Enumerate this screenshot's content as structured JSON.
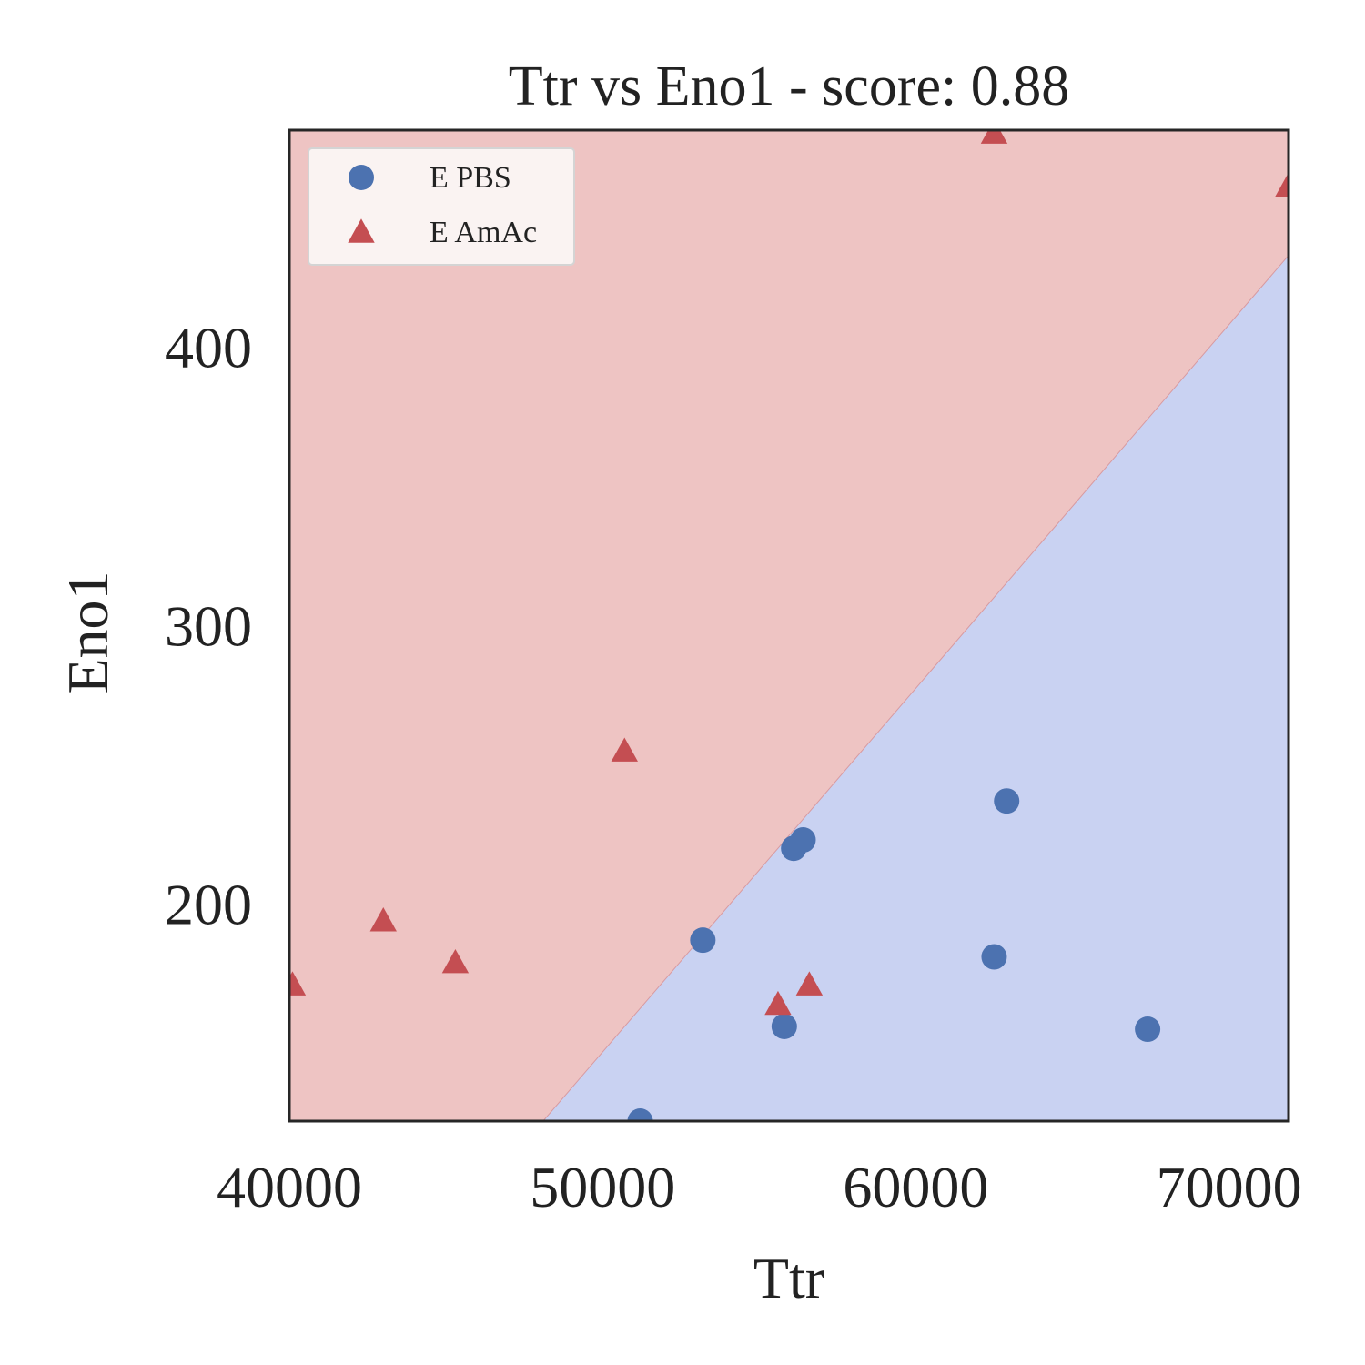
{
  "chart_data": {
    "type": "scatter",
    "title": "Ttr vs Eno1 - score: 0.88",
    "xlabel": "Ttr",
    "ylabel": "Eno1",
    "xlim": [
      40000,
      71900
    ],
    "ylim": [
      122,
      478
    ],
    "xticks": [
      40000,
      50000,
      60000,
      70000
    ],
    "yticks": [
      200,
      300,
      400
    ],
    "grid": false,
    "legend_position": "top-left",
    "decision_regions": {
      "upper_class": "E AmAc",
      "lower_class": "E PBS",
      "upper_color": "#eec4c3",
      "lower_color": "#c9d2f2",
      "boundary": [
        [
          48100,
          122
        ],
        [
          71900,
          433
        ]
      ]
    },
    "series": [
      {
        "name": "E PBS",
        "marker": "circle",
        "color": "#4c72b0",
        "points": [
          [
            51200,
            122
          ],
          [
            53200,
            187
          ],
          [
            55800,
            156
          ],
          [
            56100,
            220
          ],
          [
            56400,
            223
          ],
          [
            62500,
            181
          ],
          [
            62900,
            237
          ],
          [
            67400,
            155
          ]
        ]
      },
      {
        "name": "E AmAc",
        "marker": "triangle",
        "color": "#c44e52",
        "points": [
          [
            40100,
            171
          ],
          [
            43000,
            194
          ],
          [
            45300,
            179
          ],
          [
            50700,
            255
          ],
          [
            55600,
            164
          ],
          [
            56600,
            171
          ],
          [
            62500,
            477
          ],
          [
            71900,
            458
          ]
        ]
      }
    ]
  }
}
